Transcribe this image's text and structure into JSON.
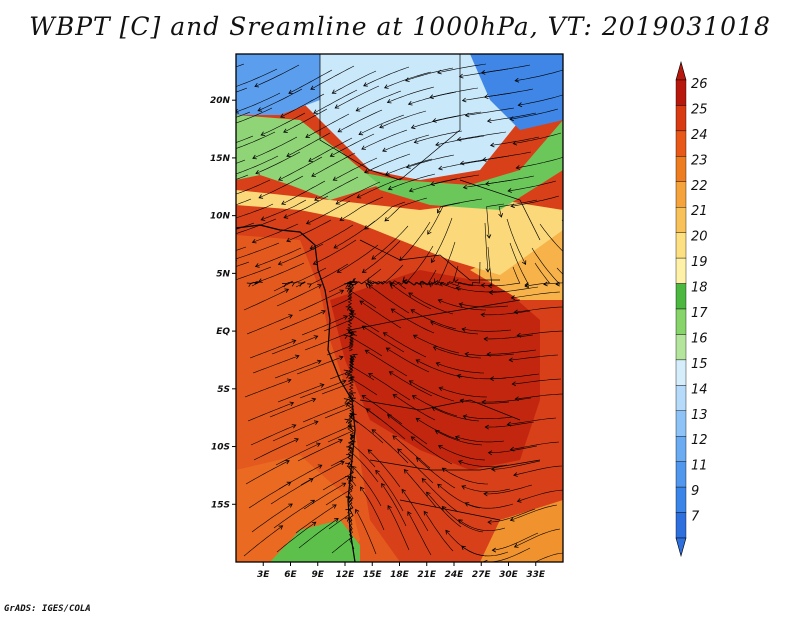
{
  "title": "WBPT [C] and Sreamline at 1000hPa, VT: 2019031018",
  "credit": "GrADS: IGES/COLA",
  "map": {
    "variable": "Wet-bulb potential temperature",
    "units": "C",
    "level": "1000hPa",
    "valid_time": "2019031018",
    "lon_range": [
      0,
      36
    ],
    "lat_range": [
      -20,
      24
    ],
    "lon_ticks": [
      "3E",
      "6E",
      "9E",
      "12E",
      "15E",
      "18E",
      "21E",
      "24E",
      "27E",
      "30E",
      "33E"
    ],
    "lon_values": [
      3,
      6,
      9,
      12,
      15,
      18,
      21,
      24,
      27,
      30,
      33
    ],
    "lat_ticks": [
      "20N",
      "15N",
      "10N",
      "5N",
      "EQ",
      "5S",
      "10S",
      "15S"
    ],
    "lat_values": [
      20,
      15,
      10,
      5,
      0,
      -5,
      -10,
      -15
    ]
  },
  "colorbar": {
    "labels": [
      "7",
      "9",
      "11",
      "12",
      "13",
      "14",
      "15",
      "16",
      "17",
      "18",
      "19",
      "20",
      "21",
      "22",
      "23",
      "24",
      "25",
      "26"
    ],
    "colors": [
      "#2e6fde",
      "#3c85e8",
      "#5197ee",
      "#6aabf2",
      "#8ec3f7",
      "#b6daf9",
      "#d6edfb",
      "#b4e59c",
      "#86d46a",
      "#4cb842",
      "#fff2a8",
      "#fde081",
      "#f9c15a",
      "#f5a33c",
      "#ee7d22",
      "#e85818",
      "#d83a12",
      "#b8180c"
    ]
  }
}
